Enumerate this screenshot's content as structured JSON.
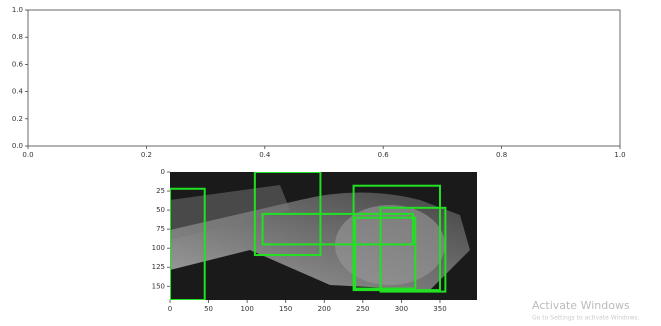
{
  "chart_data": [
    {
      "type": "empty",
      "xlim": [
        0,
        1
      ],
      "ylim": [
        0,
        1
      ],
      "xticks": [
        {
          "value": 0,
          "label": "0.0"
        },
        0.2,
        0.4,
        0.6,
        0.8,
        {
          "value": 1,
          "label": "1.0"
        }
      ],
      "yticks": [
        {
          "value": 0,
          "label": "0.0"
        },
        0.2,
        0.4,
        0.6,
        0.8,
        {
          "value": 1,
          "label": "1.0"
        }
      ]
    },
    {
      "type": "image-boxes",
      "color": "#22e022",
      "xlim": [
        0,
        398
      ],
      "ylim": [
        168,
        0
      ],
      "xticks": [
        0,
        50,
        100,
        150,
        200,
        250,
        300,
        350
      ],
      "yticks": [
        0,
        25,
        50,
        75,
        100,
        125,
        150
      ],
      "boxes": [
        {
          "x": [
            0,
            45
          ],
          "y": [
            22,
            168
          ]
        },
        {
          "x": [
            110,
            195
          ],
          "y": [
            0,
            109
          ]
        },
        {
          "x": [
            120,
            315
          ],
          "y": [
            55,
            95
          ]
        },
        {
          "x": [
            238,
            350
          ],
          "y": [
            18,
            155
          ]
        },
        {
          "x": [
            273,
            357
          ],
          "y": [
            47,
            157
          ]
        },
        {
          "x": [
            240,
            318
          ],
          "y": [
            60,
            153
          ]
        }
      ]
    }
  ],
  "overlay": {
    "title": "Activate Windows",
    "subtitle": "Go to Settings to activate Windows."
  }
}
